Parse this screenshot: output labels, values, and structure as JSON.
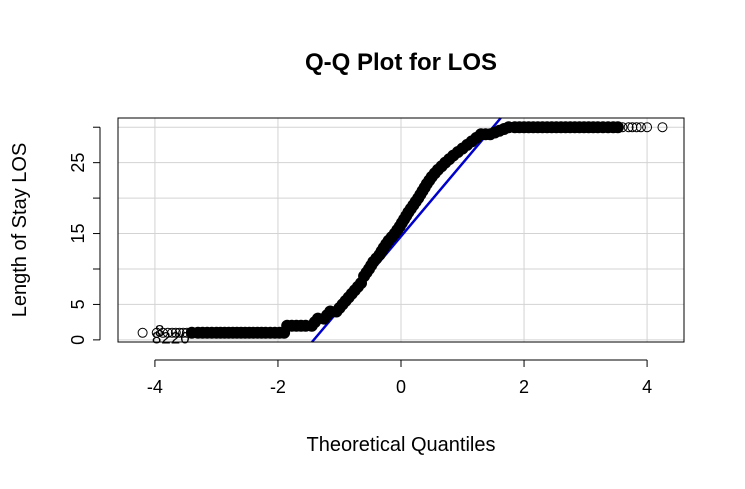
{
  "chart_data": {
    "type": "scatter",
    "title": "Q-Q Plot for LOS",
    "xlabel": "Theoretical Quantiles",
    "ylabel": "Length of Stay LOS",
    "xlim": [
      -4.6,
      4.6
    ],
    "ylim": [
      -0.3,
      31.3
    ],
    "x_ticks": [
      -4,
      -2,
      0,
      2,
      4
    ],
    "y_ticks_labeled": [
      0,
      5,
      15,
      25
    ],
    "y_ticks": [
      0,
      5,
      10,
      15,
      20,
      25,
      30
    ],
    "grid": true,
    "reference_line": {
      "intercept": 14.6,
      "slope": 10.3,
      "color": "#0000CD"
    },
    "point_annotations": [
      {
        "text": "8220",
        "x": -4.05,
        "y": 0.3
      },
      {
        "text": "8",
        "x": -4.0,
        "y": 1.3
      }
    ],
    "series": [
      {
        "points": [
          [
            -4.2,
            1
          ],
          [
            -3.97,
            1
          ],
          [
            -3.87,
            1
          ],
          [
            -3.79,
            1
          ],
          [
            -3.72,
            1
          ],
          [
            -3.66,
            1
          ],
          [
            -3.6,
            1
          ],
          [
            -3.54,
            1
          ],
          [
            -3.48,
            1
          ],
          [
            -3.4,
            1
          ],
          [
            -3.3,
            1
          ],
          [
            -3.15,
            1
          ],
          [
            -3.0,
            1
          ],
          [
            -2.8,
            1
          ],
          [
            -2.6,
            1
          ],
          [
            -2.4,
            1
          ],
          [
            -2.2,
            1
          ],
          [
            -2.05,
            1
          ],
          [
            -1.9,
            1
          ],
          [
            -1.85,
            2
          ],
          [
            -1.7,
            2
          ],
          [
            -1.55,
            2
          ],
          [
            -1.45,
            2
          ],
          [
            -1.35,
            3
          ],
          [
            -1.25,
            3
          ],
          [
            -1.15,
            4
          ],
          [
            -1.05,
            4
          ],
          [
            -0.95,
            5
          ],
          [
            -0.85,
            6
          ],
          [
            -0.75,
            7
          ],
          [
            -0.65,
            8
          ],
          [
            -0.6,
            9
          ],
          [
            -0.52,
            10
          ],
          [
            -0.45,
            11
          ],
          [
            -0.35,
            12
          ],
          [
            -0.28,
            13
          ],
          [
            -0.2,
            14
          ],
          [
            -0.1,
            15
          ],
          [
            -0.02,
            16
          ],
          [
            0.05,
            17
          ],
          [
            0.12,
            18
          ],
          [
            0.2,
            19
          ],
          [
            0.28,
            20
          ],
          [
            0.35,
            21
          ],
          [
            0.42,
            22
          ],
          [
            0.5,
            23
          ],
          [
            0.6,
            24
          ],
          [
            0.72,
            25
          ],
          [
            0.85,
            26
          ],
          [
            1.0,
            27
          ],
          [
            1.15,
            28
          ],
          [
            1.3,
            29
          ],
          [
            1.45,
            29
          ],
          [
            1.6,
            29.5
          ],
          [
            1.75,
            30
          ],
          [
            1.85,
            30
          ],
          [
            2.0,
            30
          ],
          [
            2.3,
            30
          ],
          [
            2.6,
            30
          ],
          [
            2.9,
            30
          ],
          [
            3.2,
            30
          ],
          [
            3.45,
            30
          ],
          [
            3.6,
            30
          ],
          [
            3.7,
            30
          ],
          [
            3.76,
            30
          ],
          [
            3.83,
            30
          ],
          [
            3.9,
            30
          ],
          [
            4.0,
            30
          ],
          [
            4.25,
            30
          ]
        ]
      }
    ]
  }
}
